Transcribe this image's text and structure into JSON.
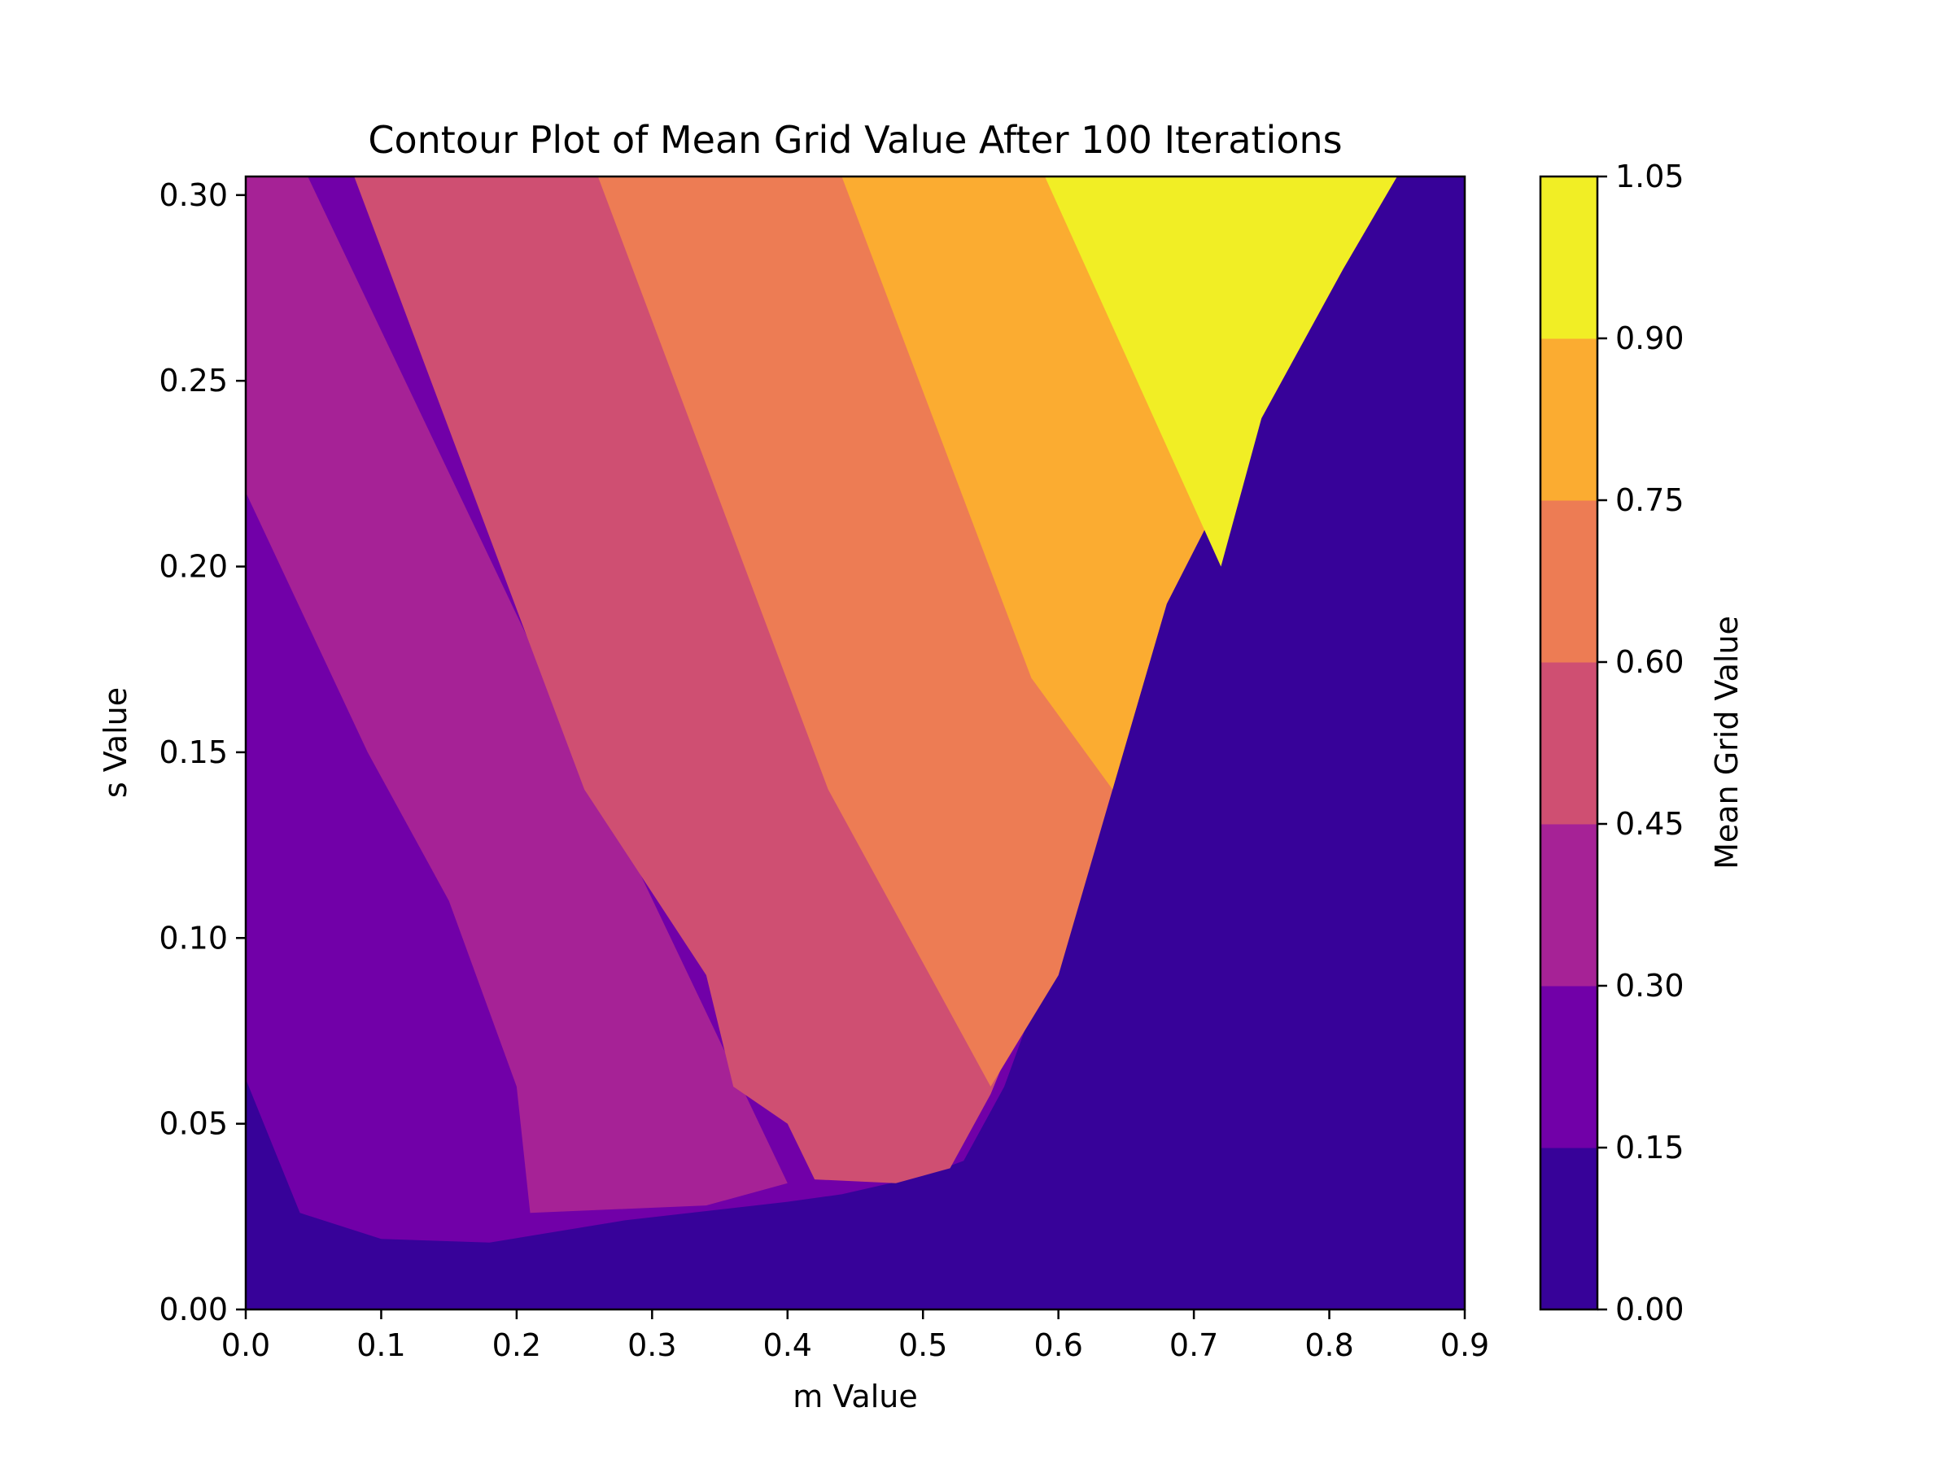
{
  "chart_data": {
    "type": "contour",
    "title": "Contour Plot of Mean Grid Value After 100 Iterations",
    "xlabel": "m Value",
    "ylabel": "s Value",
    "xlim": [
      0.0,
      0.9
    ],
    "ylim": [
      0.0,
      0.305
    ],
    "x_ticks": [
      "0.0",
      "0.1",
      "0.2",
      "0.3",
      "0.4",
      "0.5",
      "0.6",
      "0.7",
      "0.8",
      "0.9"
    ],
    "y_ticks": [
      "0.00",
      "0.05",
      "0.10",
      "0.15",
      "0.20",
      "0.25",
      "0.30"
    ],
    "colorbar": {
      "label": "Mean Grid Value",
      "ticks": [
        "0.00",
        "0.15",
        "0.30",
        "0.45",
        "0.60",
        "0.75",
        "0.90",
        "1.05"
      ]
    },
    "levels": [
      {
        "range": [
          0.0,
          0.15
        ],
        "color": "#370299"
      },
      {
        "range": [
          0.15,
          0.3
        ],
        "color": "#7100a8"
      },
      {
        "range": [
          0.3,
          0.45
        ],
        "color": "#a62296"
      },
      {
        "range": [
          0.45,
          0.6
        ],
        "color": "#cf4f72"
      },
      {
        "range": [
          0.6,
          0.75
        ],
        "color": "#ed7c54"
      },
      {
        "range": [
          0.75,
          0.9
        ],
        "color": "#fbac31"
      },
      {
        "range": [
          0.9,
          1.05
        ],
        "color": "#f1ee25"
      }
    ],
    "regions": [
      {
        "level": 1,
        "points": [
          [
            0.0,
            0.0
          ],
          [
            0.9,
            0.0
          ],
          [
            0.9,
            0.305
          ],
          [
            0.0,
            0.305
          ]
        ]
      },
      {
        "level": 2,
        "points": [
          [
            0.0,
            0.062
          ],
          [
            0.04,
            0.026
          ],
          [
            0.1,
            0.019
          ],
          [
            0.18,
            0.018
          ],
          [
            0.28,
            0.024
          ],
          [
            0.4,
            0.029
          ],
          [
            0.44,
            0.031
          ],
          [
            0.5,
            0.036
          ],
          [
            0.53,
            0.04
          ],
          [
            0.56,
            0.06
          ],
          [
            0.62,
            0.12
          ],
          [
            0.68,
            0.19
          ],
          [
            0.75,
            0.24
          ],
          [
            0.81,
            0.28
          ],
          [
            0.85,
            0.305
          ],
          [
            0.0,
            0.305
          ]
        ]
      },
      {
        "level": 3,
        "points": [
          [
            0.0,
            0.22
          ],
          [
            0.09,
            0.15
          ],
          [
            0.15,
            0.11
          ],
          [
            0.2,
            0.06
          ],
          [
            0.21,
            0.026
          ],
          [
            0.34,
            0.028
          ],
          [
            0.4,
            0.034
          ],
          [
            0.0,
            0.34
          ]
        ]
      },
      {
        "level": 4,
        "points": [
          [
            0.08,
            0.305
          ],
          [
            0.25,
            0.14
          ],
          [
            0.34,
            0.09
          ],
          [
            0.36,
            0.06
          ],
          [
            0.4,
            0.05
          ],
          [
            0.42,
            0.035
          ],
          [
            0.48,
            0.034
          ],
          [
            0.52,
            0.038
          ],
          [
            0.55,
            0.058
          ],
          [
            0.62,
            0.12
          ],
          [
            0.68,
            0.19
          ],
          [
            0.75,
            0.24
          ],
          [
            0.81,
            0.28
          ],
          [
            0.85,
            0.305
          ]
        ]
      },
      {
        "level": 5,
        "points": [
          [
            0.26,
            0.305
          ],
          [
            0.43,
            0.14
          ],
          [
            0.52,
            0.08
          ],
          [
            0.55,
            0.06
          ],
          [
            0.6,
            0.09
          ],
          [
            0.64,
            0.14
          ],
          [
            0.68,
            0.19
          ],
          [
            0.75,
            0.24
          ],
          [
            0.81,
            0.28
          ],
          [
            0.85,
            0.305
          ]
        ]
      },
      {
        "level": 6,
        "points": [
          [
            0.44,
            0.305
          ],
          [
            0.58,
            0.17
          ],
          [
            0.64,
            0.14
          ],
          [
            0.68,
            0.19
          ],
          [
            0.75,
            0.24
          ],
          [
            0.81,
            0.28
          ],
          [
            0.85,
            0.305
          ]
        ]
      },
      {
        "level": 7,
        "points": [
          [
            0.59,
            0.305
          ],
          [
            0.72,
            0.2
          ],
          [
            0.75,
            0.24
          ],
          [
            0.81,
            0.28
          ],
          [
            0.85,
            0.305
          ]
        ]
      }
    ]
  }
}
